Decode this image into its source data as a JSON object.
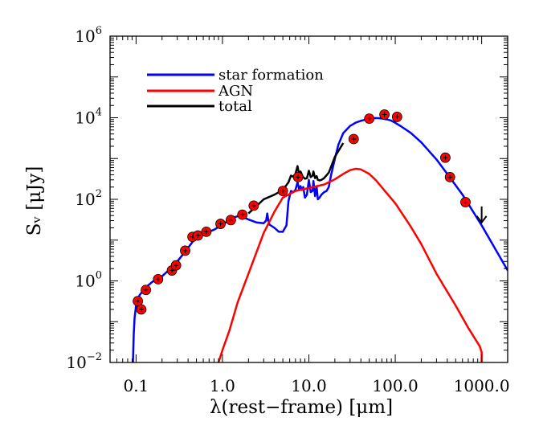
{
  "chart_data": {
    "type": "line",
    "title": "",
    "xlabel": "λ(rest−frame) [μm]",
    "ylabel": "Sᵥ [μJy]",
    "xscale": "log",
    "yscale": "log",
    "xlim": [
      0.05,
      2000
    ],
    "ylim": [
      0.01,
      1000000
    ],
    "x_ticks": [
      {
        "value": 0.1,
        "label": "0.1"
      },
      {
        "value": 1,
        "label": "1.0"
      },
      {
        "value": 10,
        "label": "10.0"
      },
      {
        "value": 100,
        "label": "100.0"
      },
      {
        "value": 1000,
        "label": "1000.0"
      }
    ],
    "y_ticks": [
      {
        "value": 0.01,
        "base": "10",
        "exp": "−2"
      },
      {
        "value": 1,
        "base": "10",
        "exp": "0"
      },
      {
        "value": 100,
        "base": "10",
        "exp": "2"
      },
      {
        "value": 10000,
        "base": "10",
        "exp": "4"
      },
      {
        "value": 1000000,
        "base": "10",
        "exp": "6"
      }
    ],
    "legend_position": "top-left",
    "series": [
      {
        "name": "star formation",
        "color": "#0000ff",
        "x": [
          0.092,
          0.094,
          0.096,
          0.1,
          0.11,
          0.13,
          0.15,
          0.18,
          0.2,
          0.25,
          0.3,
          0.35,
          0.4,
          0.45,
          0.5,
          0.6,
          0.8,
          1.0,
          1.3,
          1.6,
          2.0,
          2.5,
          3.0,
          3.2,
          3.3,
          3.4,
          3.5,
          4.0,
          4.5,
          5.0,
          5.5,
          5.8,
          6.2,
          6.6,
          7.0,
          7.4,
          7.7,
          8.0,
          8.3,
          8.6,
          9.0,
          9.5,
          10.0,
          10.5,
          11.0,
          11.3,
          11.8,
          12.3,
          12.7,
          13.3,
          14.0,
          15.0,
          16.0,
          17.0,
          18.0,
          20.0,
          22.0,
          25.0,
          30.0,
          35.0,
          40.0,
          50.0,
          60.0,
          70.0,
          80.0,
          90.0,
          100.0,
          120.0,
          150.0,
          200.0,
          300.0,
          400.0,
          600.0,
          1000.0,
          2000.0
        ],
        "y": [
          0.01,
          0.05,
          0.12,
          0.25,
          0.45,
          0.7,
          0.9,
          1.2,
          1.3,
          2.0,
          3.0,
          4.5,
          6.5,
          9.0,
          13.0,
          14.0,
          18.0,
          24.0,
          35.0,
          40.0,
          32.0,
          27.0,
          26.0,
          30.0,
          45.0,
          30.0,
          24.0,
          20.0,
          16.0,
          16.0,
          23.0,
          90.0,
          160.0,
          150.0,
          170.0,
          260.0,
          180.0,
          210.0,
          170.0,
          200.0,
          110.0,
          130.0,
          300.0,
          150.0,
          160.0,
          280.0,
          120.0,
          200.0,
          100.0,
          110.0,
          130.0,
          150.0,
          160.0,
          200.0,
          380.0,
          1000.0,
          2200.0,
          4200.0,
          6300.0,
          7600.0,
          8400.0,
          9500.0,
          9800.0,
          9600.0,
          9100.0,
          8500.0,
          7500.0,
          5900.0,
          4300.0,
          2500.0,
          950.0,
          420.0,
          130.0,
          23.0,
          1.8
        ]
      },
      {
        "name": "AGN",
        "color": "#ff0000",
        "x": [
          0.9,
          1.0,
          1.2,
          1.5,
          2.0,
          3.0,
          4.0,
          5.0,
          7.0,
          10.0,
          15.0,
          20.0,
          25.0,
          30.0,
          35.0,
          40.0,
          50.0,
          60.0,
          80.0,
          100.0,
          150.0,
          200.0,
          300.0,
          500.0,
          700.0,
          950.0,
          1000.0,
          1000.0
        ],
        "y": [
          0.01,
          0.02,
          0.06,
          0.3,
          1.5,
          15.0,
          50.0,
          110.0,
          160.0,
          190.0,
          230.0,
          310.0,
          420.0,
          520.0,
          560.0,
          540.0,
          420.0,
          290.0,
          140.0,
          80.0,
          22.0,
          8.0,
          1.5,
          0.25,
          0.07,
          0.025,
          0.018,
          0.01
        ]
      },
      {
        "name": "total",
        "color": "#000000",
        "x": [
          2.0,
          2.5,
          3.0,
          4.0,
          5.0,
          5.8,
          6.2,
          6.6,
          7.0,
          7.4,
          7.7,
          8.0,
          8.5,
          9.0,
          9.5,
          10.0,
          10.5,
          11.0,
          11.3,
          11.8,
          12.3,
          12.7,
          13.3,
          14.0,
          15.0,
          17.0,
          20.0,
          25.0
        ],
        "y": [
          45.0,
          70.0,
          100.0,
          130.0,
          170.0,
          260.0,
          380.0,
          360.0,
          420.0,
          650.0,
          420.0,
          480.0,
          360.0,
          320.0,
          330.0,
          500.0,
          350.0,
          380.0,
          480.0,
          330.0,
          370.0,
          300.0,
          290.0,
          300.0,
          330.0,
          450.0,
          1100.0,
          2400.0
        ]
      }
    ],
    "observed_points": {
      "name": "photometry",
      "color": "#ff0000",
      "x": [
        0.105,
        0.115,
        0.13,
        0.18,
        0.26,
        0.29,
        0.37,
        0.45,
        0.52,
        0.65,
        0.95,
        1.25,
        1.7,
        2.3,
        5.0,
        7.5,
        33.0,
        50.0,
        75.0,
        105.0,
        380.0,
        430.0,
        650.0
      ],
      "y": [
        0.32,
        0.2,
        0.6,
        1.1,
        1.8,
        2.4,
        5.5,
        12.0,
        13.0,
        16.0,
        25.0,
        31.0,
        42.0,
        70.0,
        160.0,
        350.0,
        3000.0,
        9500.0,
        12000.0,
        10500.0,
        1050.0,
        350.0,
        85.0
      ]
    },
    "upper_limit": {
      "x": 1000.0,
      "y": 27.0
    }
  },
  "legend": {
    "items": [
      {
        "label": "star formation",
        "color": "#0000ff"
      },
      {
        "label": "AGN",
        "color": "#ff0000"
      },
      {
        "label": "total",
        "color": "#000000"
      }
    ]
  }
}
